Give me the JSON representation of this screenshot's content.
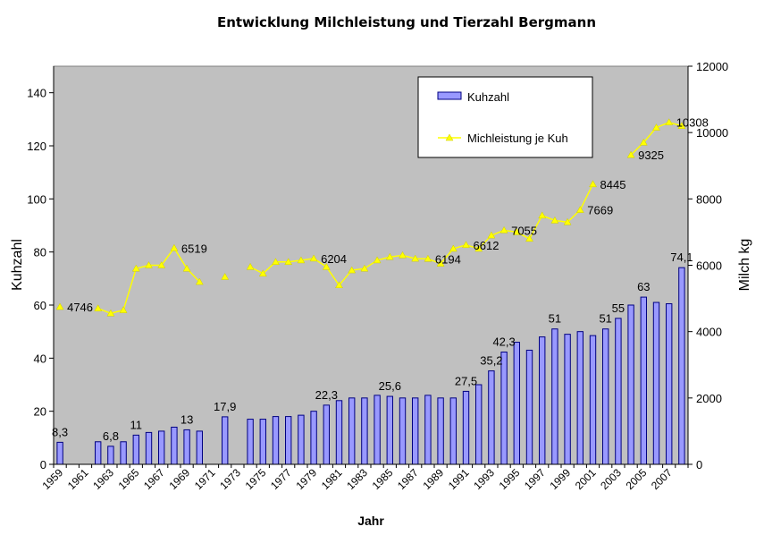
{
  "chart_data": {
    "type": "bar",
    "title": "Entwicklung Milchleistung und Tierzahl Bergmann",
    "xlabel": "Jahr",
    "ylabel_left": "Kuhzahl",
    "ylabel_right": "Milch kg",
    "ylim_left": [
      0,
      150
    ],
    "ylim_right": [
      0,
      12000
    ],
    "yticks_left": [
      0,
      20,
      40,
      60,
      80,
      100,
      120,
      140
    ],
    "yticks_right": [
      0,
      2000,
      4000,
      6000,
      8000,
      10000,
      12000
    ],
    "x_tick_labels": [
      "1959",
      "1961",
      "1963",
      "1965",
      "1967",
      "1969",
      "1971",
      "1973",
      "1975",
      "1977",
      "1979",
      "1981",
      "1983",
      "1985",
      "1987",
      "1989",
      "1991",
      "1993",
      "1995",
      "1997",
      "1999",
      "2001",
      "2003",
      "2005",
      "2007"
    ],
    "categories": [
      1959,
      1960,
      1961,
      1962,
      1963,
      1964,
      1965,
      1966,
      1967,
      1968,
      1969,
      1970,
      1971,
      1972,
      1973,
      1974,
      1975,
      1976,
      1977,
      1978,
      1979,
      1980,
      1981,
      1982,
      1983,
      1984,
      1985,
      1986,
      1987,
      1988,
      1989,
      1990,
      1991,
      1992,
      1993,
      1994,
      1995,
      1996,
      1997,
      1998,
      1999,
      2000,
      2001,
      2002,
      2003,
      2004,
      2005,
      2006,
      2007,
      2008
    ],
    "plot_background": "#c0c0c0",
    "series": [
      {
        "name": "Kuhzahl",
        "type": "bar",
        "axis": "left",
        "color": "#9999ff",
        "values": [
          8.3,
          null,
          null,
          8.5,
          6.8,
          8.5,
          11,
          12,
          12.5,
          14,
          13,
          12.5,
          null,
          17.9,
          null,
          17,
          17,
          18,
          18,
          18.5,
          20,
          22.3,
          24,
          25,
          25,
          26,
          25.6,
          25,
          25,
          26,
          25,
          25,
          27.5,
          30,
          35.2,
          42.3,
          46,
          43,
          48,
          51,
          49,
          50,
          48.5,
          51,
          55,
          60,
          63,
          61,
          60.5,
          74.1
        ]
      },
      {
        "name": "Michleistung je Kuh",
        "type": "line",
        "axis": "right",
        "color": "#ffff00",
        "values": [
          4746,
          null,
          null,
          4700,
          4550,
          4650,
          5900,
          6000,
          6000,
          6519,
          5900,
          5500,
          null,
          5650,
          null,
          5950,
          5750,
          6100,
          6100,
          6150,
          6204,
          5950,
          5400,
          5850,
          5900,
          6150,
          6250,
          6300,
          6200,
          6194,
          6050,
          6500,
          6612,
          6500,
          6900,
          7055,
          7000,
          6800,
          7500,
          7350,
          7300,
          7669,
          8445,
          null,
          null,
          9325,
          9700,
          10150,
          10308,
          10200
        ]
      }
    ],
    "bar_data_labels": [
      {
        "year": 1959,
        "text": "8,3"
      },
      {
        "year": 1963,
        "text": "6,8"
      },
      {
        "year": 1965,
        "text": "11"
      },
      {
        "year": 1969,
        "text": "13"
      },
      {
        "year": 1972,
        "text": "17,9"
      },
      {
        "year": 1980,
        "text": "22,3"
      },
      {
        "year": 1985,
        "text": "25,6"
      },
      {
        "year": 1991,
        "text": "27,5"
      },
      {
        "year": 1993,
        "text": "35,2"
      },
      {
        "year": 1994,
        "text": "42,3"
      },
      {
        "year": 1998,
        "text": "51"
      },
      {
        "year": 2002,
        "text": "51"
      },
      {
        "year": 2003,
        "text": "55"
      },
      {
        "year": 2005,
        "text": "63"
      },
      {
        "year": 2008,
        "text": "74,1"
      }
    ],
    "line_data_labels": [
      {
        "year": 1959,
        "text": "4746"
      },
      {
        "year": 1968,
        "text": "6519"
      },
      {
        "year": 1979,
        "text": "6204"
      },
      {
        "year": 1988,
        "text": "6194"
      },
      {
        "year": 1991,
        "text": "6612"
      },
      {
        "year": 1994,
        "text": "7055"
      },
      {
        "year": 2000,
        "text": "7669"
      },
      {
        "year": 2001,
        "text": "8445"
      },
      {
        "year": 2004,
        "text": "9325"
      },
      {
        "year": 2007,
        "text": "10308"
      }
    ],
    "legend": {
      "placement": "top-right",
      "entries": [
        "Kuhzahl",
        "Michleistung je Kuh"
      ]
    }
  }
}
